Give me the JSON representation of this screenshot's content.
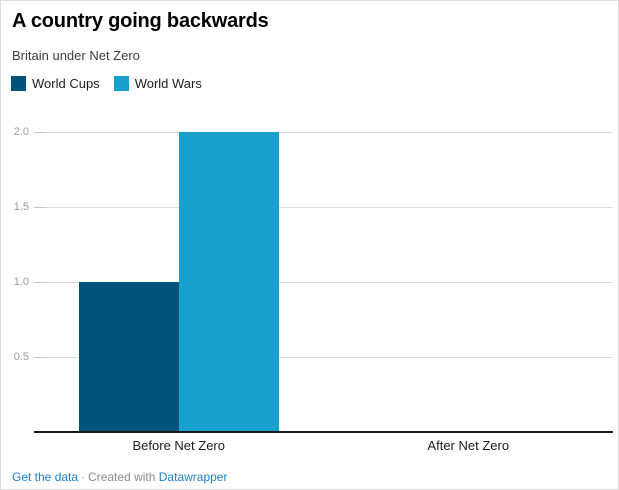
{
  "header": {
    "title": "A country going backwards",
    "subtitle": "Britain under Net Zero"
  },
  "legend": {
    "items": [
      {
        "label": "World Cups",
        "color": "#00537a"
      },
      {
        "label": "World Wars",
        "color": "#18a1cd"
      }
    ]
  },
  "chart_data": {
    "type": "bar",
    "categories": [
      "Before Net Zero",
      "After Net Zero"
    ],
    "series": [
      {
        "name": "World Cups",
        "color": "#00537a",
        "values": [
          1,
          0
        ]
      },
      {
        "name": "World Wars",
        "color": "#18a1cd",
        "values": [
          2,
          0
        ]
      }
    ],
    "title": "A country going backwards",
    "subtitle": "Britain under Net Zero",
    "xlabel": "",
    "ylabel": "",
    "ylim": [
      0,
      2.1
    ],
    "yticks": [
      0.5,
      1.0,
      1.5,
      2.0
    ],
    "ytick_labels": [
      "0.5",
      "1.0",
      "1.5",
      "2.0"
    ],
    "grid": "horizontal",
    "legend_position": "top-left"
  },
  "footer": {
    "get_data_label": "Get the data",
    "separator": "·",
    "created_with": "Created with",
    "brand_label": "Datawrapper"
  },
  "colors": {
    "series_dark": "#00537a",
    "series_light": "#18a1cd",
    "gridline": "#dadada",
    "tick_dash": "#c6c6c6",
    "axis_line": "#171717",
    "ytick_label": "#9b9b9b",
    "category_label": "#1d1d1d",
    "subtitle_text": "#3e3e3e",
    "footer_text": "#8d8d8d",
    "link": "#1d82c5"
  }
}
